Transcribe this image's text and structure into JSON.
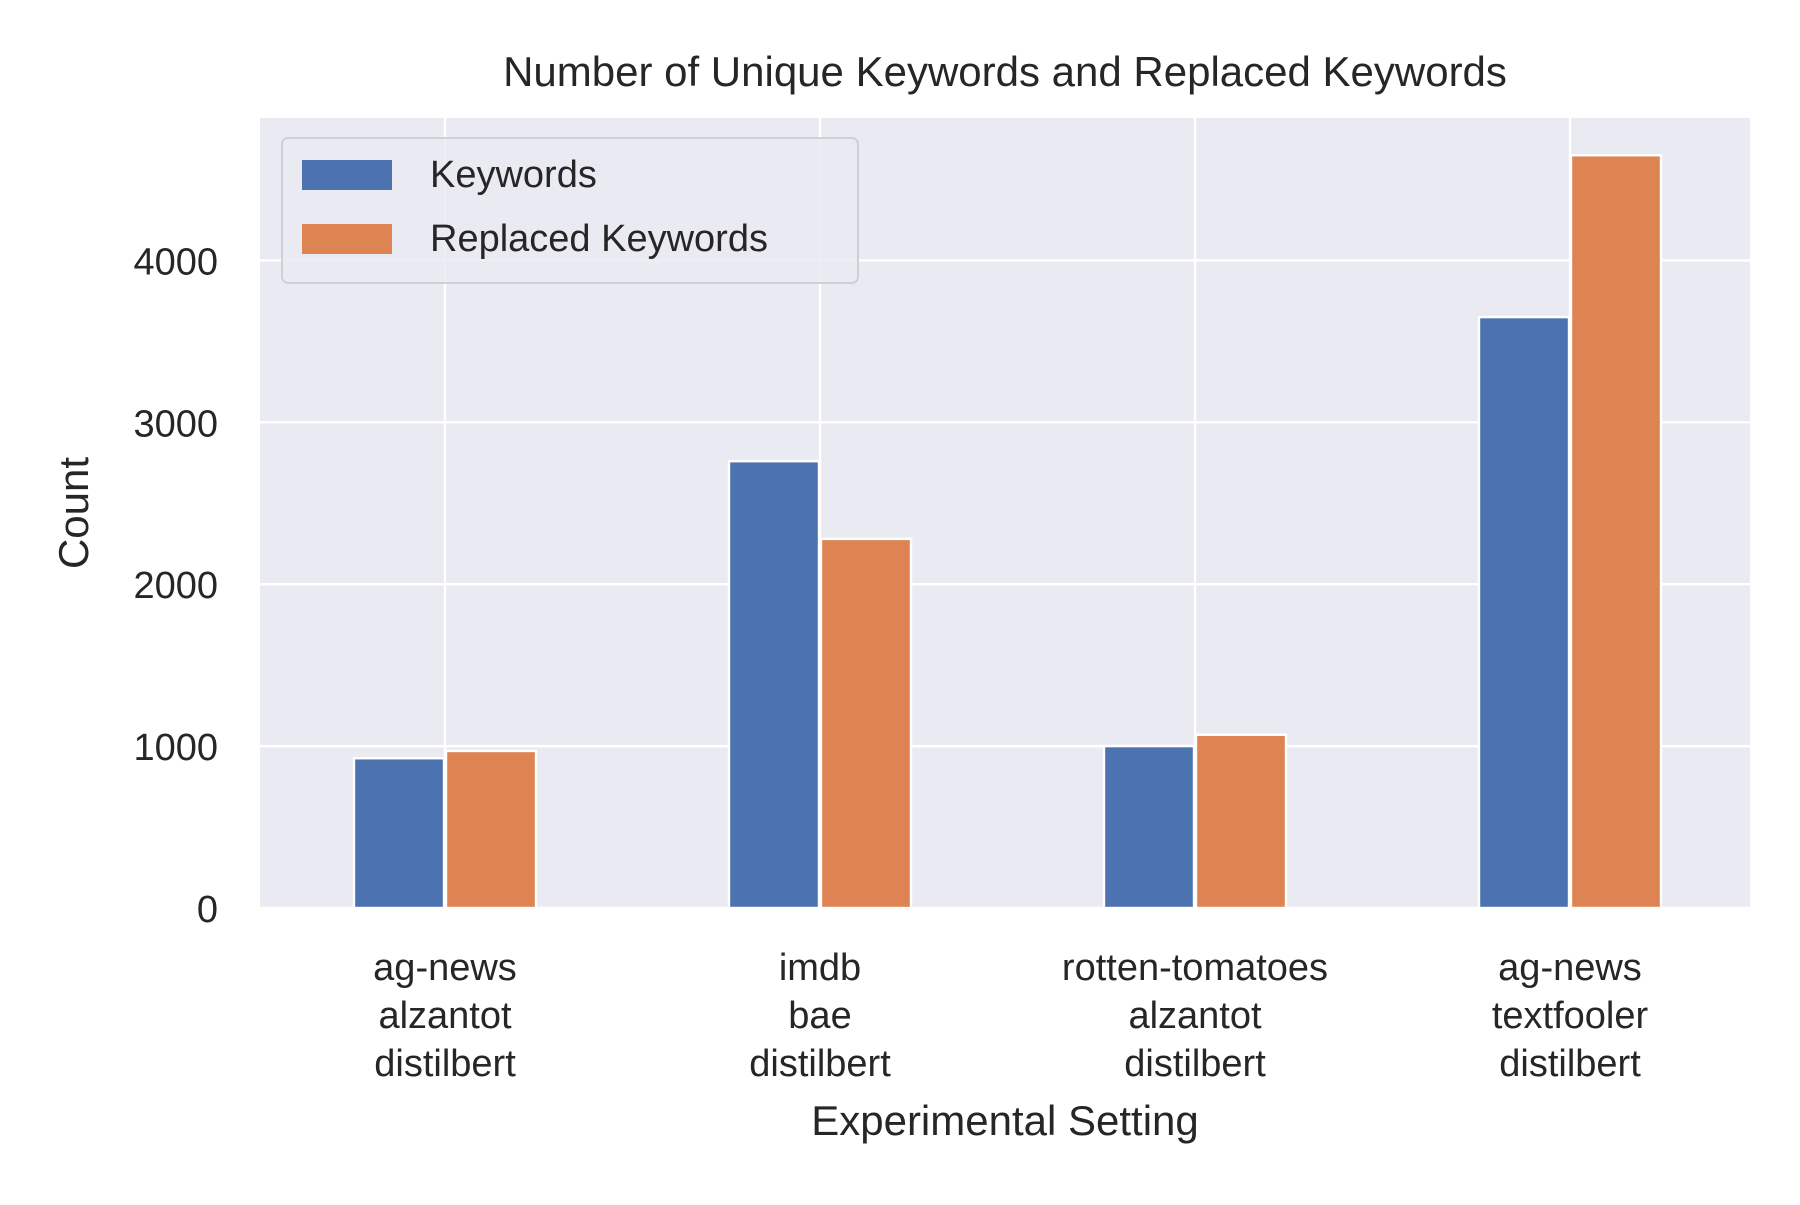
{
  "chart_data": {
    "type": "bar",
    "title": "Number of Unique Keywords and Replaced Keywords",
    "xlabel": "Experimental Setting",
    "ylabel": "Count",
    "categories": [
      [
        "ag-news",
        "alzantot",
        "distilbert"
      ],
      [
        "imdb",
        "bae",
        "distilbert"
      ],
      [
        "rotten-tomatoes",
        "alzantot",
        "distilbert"
      ],
      [
        "ag-news",
        "textfooler",
        "distilbert"
      ]
    ],
    "series": [
      {
        "name": "Keywords",
        "color": "#4C72B0",
        "values": [
          925,
          2760,
          1000,
          3650
        ]
      },
      {
        "name": "Replaced Keywords",
        "color": "#DD8452",
        "values": [
          970,
          2280,
          1070,
          4650
        ]
      }
    ],
    "ylim": [
      0,
      4880
    ],
    "yticks": [
      0,
      1000,
      2000,
      3000,
      4000
    ],
    "grid": true,
    "legend_position": "top-left",
    "style": {
      "plot_background": "#EAEAF2",
      "grid_color": "#FFFFFF"
    }
  }
}
